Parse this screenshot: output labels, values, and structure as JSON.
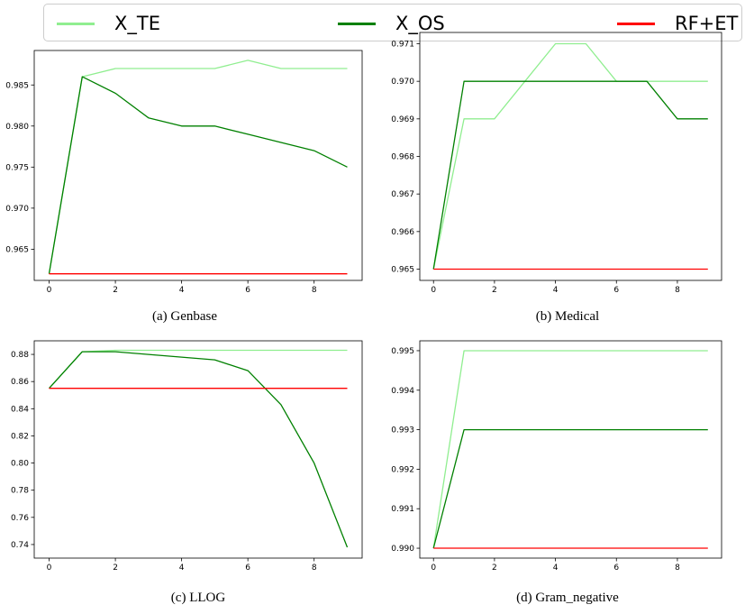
{
  "legend": {
    "items": [
      {
        "label": "X_TE",
        "color": "#90ee90"
      },
      {
        "label": "X_OS",
        "color": "#008000"
      },
      {
        "label": "RF+ET",
        "color": "#ff0000"
      }
    ]
  },
  "chart_data": [
    {
      "type": "line",
      "caption": "(a) Genbase",
      "x": [
        0,
        1,
        2,
        3,
        4,
        5,
        6,
        7,
        8,
        9
      ],
      "xticks": [
        0,
        2,
        4,
        6,
        8
      ],
      "yticks": [
        0.965,
        0.97,
        0.975,
        0.98,
        0.985
      ],
      "ytick_labels": [
        "0.965",
        "0.970",
        "0.975",
        "0.980",
        "0.985"
      ],
      "xlim": [
        -0.45,
        9.45
      ],
      "ylim": [
        0.9612,
        0.9892
      ],
      "series": [
        {
          "name": "X_TE",
          "color": "#90ee90",
          "values": [
            0.962,
            0.986,
            0.987,
            0.987,
            0.987,
            0.987,
            0.988,
            0.987,
            0.987,
            0.987
          ]
        },
        {
          "name": "X_OS",
          "color": "#008000",
          "values": [
            0.962,
            0.986,
            0.984,
            0.981,
            0.98,
            0.98,
            0.979,
            0.978,
            0.977,
            0.975
          ]
        },
        {
          "name": "RF+ET",
          "color": "#ff0000",
          "values": [
            0.962,
            0.962,
            0.962,
            0.962,
            0.962,
            0.962,
            0.962,
            0.962,
            0.962,
            0.962
          ]
        }
      ]
    },
    {
      "type": "line",
      "caption": "(b) Medical",
      "x": [
        0,
        1,
        2,
        3,
        4,
        5,
        6,
        7,
        8,
        9
      ],
      "xticks": [
        0,
        2,
        4,
        6,
        8
      ],
      "yticks": [
        0.965,
        0.966,
        0.967,
        0.968,
        0.969,
        0.97,
        0.971
      ],
      "ytick_labels": [
        "0.965",
        "0.966",
        "0.967",
        "0.968",
        "0.969",
        "0.970",
        "0.971"
      ],
      "xlim": [
        -0.45,
        9.45
      ],
      "ylim": [
        0.9647,
        0.9713
      ],
      "series": [
        {
          "name": "X_TE",
          "color": "#90ee90",
          "values": [
            0.965,
            0.969,
            0.969,
            0.97,
            0.971,
            0.971,
            0.97,
            0.97,
            0.97,
            0.97
          ]
        },
        {
          "name": "X_OS",
          "color": "#008000",
          "values": [
            0.965,
            0.97,
            0.97,
            0.97,
            0.97,
            0.97,
            0.97,
            0.97,
            0.969,
            0.969
          ]
        },
        {
          "name": "RF+ET",
          "color": "#ff0000",
          "values": [
            0.965,
            0.965,
            0.965,
            0.965,
            0.965,
            0.965,
            0.965,
            0.965,
            0.965,
            0.965
          ]
        }
      ]
    },
    {
      "type": "line",
      "caption": "(c) LLOG",
      "x": [
        0,
        1,
        2,
        3,
        4,
        5,
        6,
        7,
        8,
        9
      ],
      "xticks": [
        0,
        2,
        4,
        6,
        8
      ],
      "yticks": [
        0.74,
        0.76,
        0.78,
        0.8,
        0.82,
        0.84,
        0.86,
        0.88
      ],
      "ytick_labels": [
        "0.74",
        "0.76",
        "0.78",
        "0.80",
        "0.82",
        "0.84",
        "0.86",
        "0.88"
      ],
      "xlim": [
        -0.45,
        9.45
      ],
      "ylim": [
        0.73,
        0.89
      ],
      "series": [
        {
          "name": "X_TE",
          "color": "#90ee90",
          "values": [
            0.855,
            0.882,
            0.883,
            0.883,
            0.883,
            0.883,
            0.883,
            0.883,
            0.883,
            0.883
          ]
        },
        {
          "name": "X_OS",
          "color": "#008000",
          "values": [
            0.855,
            0.882,
            0.882,
            0.88,
            0.878,
            0.876,
            0.868,
            0.843,
            0.8,
            0.738
          ]
        },
        {
          "name": "RF+ET",
          "color": "#ff0000",
          "values": [
            0.855,
            0.855,
            0.855,
            0.855,
            0.855,
            0.855,
            0.855,
            0.855,
            0.855,
            0.855
          ]
        }
      ]
    },
    {
      "type": "line",
      "caption": "(d) Gram_negative",
      "x": [
        0,
        1,
        2,
        3,
        4,
        5,
        6,
        7,
        8,
        9
      ],
      "xticks": [
        0,
        2,
        4,
        6,
        8
      ],
      "yticks": [
        0.99,
        0.991,
        0.992,
        0.993,
        0.994,
        0.995
      ],
      "ytick_labels": [
        "0.990",
        "0.991",
        "0.992",
        "0.993",
        "0.994",
        "0.995"
      ],
      "xlim": [
        -0.45,
        9.45
      ],
      "ylim": [
        0.98975,
        0.99525
      ],
      "series": [
        {
          "name": "X_TE",
          "color": "#90ee90",
          "values": [
            0.99,
            0.995,
            0.995,
            0.995,
            0.995,
            0.995,
            0.995,
            0.995,
            0.995,
            0.995
          ]
        },
        {
          "name": "X_OS",
          "color": "#008000",
          "values": [
            0.99,
            0.993,
            0.993,
            0.993,
            0.993,
            0.993,
            0.993,
            0.993,
            0.993,
            0.993
          ]
        },
        {
          "name": "RF+ET",
          "color": "#ff0000",
          "values": [
            0.99,
            0.99,
            0.99,
            0.99,
            0.99,
            0.99,
            0.99,
            0.99,
            0.99,
            0.99
          ]
        }
      ]
    }
  ]
}
